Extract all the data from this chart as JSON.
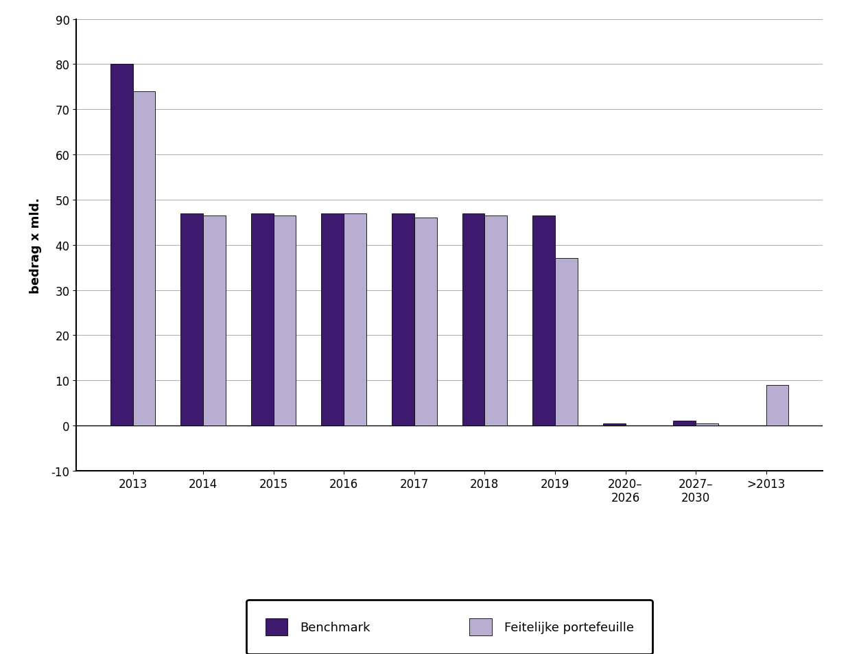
{
  "categories": [
    "2013",
    "2014",
    "2015",
    "2016",
    "2017",
    "2018",
    "2019",
    "2020-\n2026",
    "2027-\n2030",
    ">2013"
  ],
  "benchmark": [
    80.0,
    47.0,
    47.0,
    47.0,
    47.0,
    47.0,
    46.5,
    0.5,
    1.0,
    0.0
  ],
  "feitelijke": [
    74.0,
    46.5,
    46.5,
    47.0,
    46.0,
    46.5,
    37.0,
    0.0,
    0.5,
    9.0
  ],
  "benchmark_color": "#3d1a6e",
  "feitelijke_color": "#b8aed2",
  "ylabel": "bedrag x mld.",
  "ylim": [
    -10,
    90
  ],
  "yticks": [
    -10,
    0,
    10,
    20,
    30,
    40,
    50,
    60,
    70,
    80,
    90
  ],
  "legend_benchmark": "Benchmark",
  "legend_feitelijke": "Feitelijke portefeuille",
  "background_color": "#ffffff",
  "bar_width": 0.32,
  "axis_fontsize": 13,
  "tick_fontsize": 12,
  "grid_color": "#aaaaaa",
  "grid_linewidth": 0.7
}
